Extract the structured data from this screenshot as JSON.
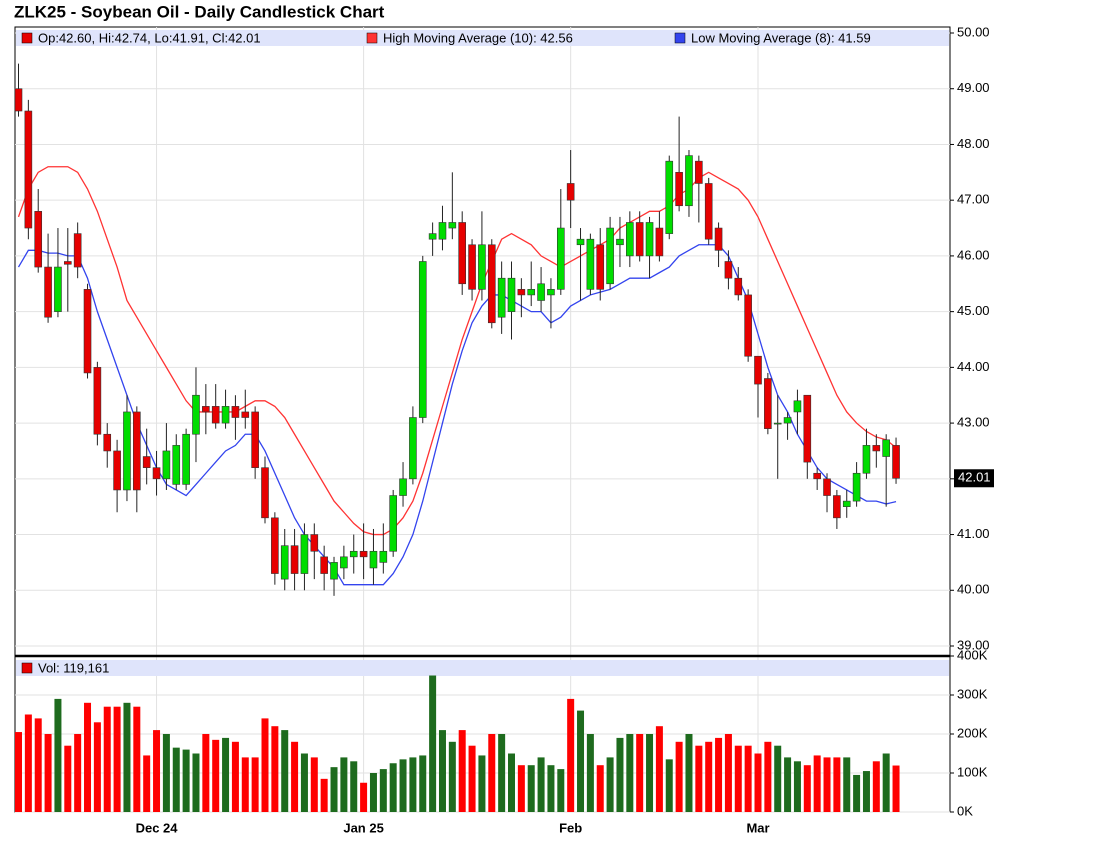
{
  "chart_data": {
    "type": "candlestick",
    "title": "ZLK25 - Soybean Oil - Daily Candlestick Chart",
    "ohlc_legend": "Op:42.60, Hi:42.74, Lo:41.91, Cl:42.01",
    "volume_legend": "Vol: 119,161",
    "categories": [
      null,
      null,
      null,
      null,
      null,
      null,
      null,
      null,
      null,
      null,
      null,
      null,
      null,
      null,
      "Dec 24",
      null,
      null,
      null,
      null,
      null,
      null,
      null,
      null,
      null,
      null,
      null,
      null,
      null,
      null,
      null,
      null,
      null,
      null,
      null,
      null,
      "Jan 25",
      null,
      null,
      null,
      null,
      null,
      null,
      null,
      null,
      null,
      null,
      null,
      null,
      null,
      null,
      null,
      null,
      null,
      null,
      null,
      null,
      "Feb",
      null,
      null,
      null,
      null,
      null,
      null,
      null,
      null,
      null,
      null,
      null,
      null,
      null,
      null,
      null,
      null,
      null,
      null,
      "Mar",
      null,
      null,
      null,
      null,
      null,
      null,
      null,
      null,
      null,
      null,
      null,
      null,
      null,
      null
    ],
    "open": [
      49.0,
      48.6,
      46.8,
      45.8,
      45.0,
      45.9,
      46.4,
      45.4,
      44.0,
      42.8,
      42.5,
      41.8,
      43.2,
      42.4,
      42.2,
      42.0,
      41.9,
      41.9,
      42.8,
      43.3,
      43.3,
      43.0,
      43.3,
      43.2,
      43.2,
      42.2,
      41.3,
      40.2,
      40.8,
      40.3,
      41.0,
      40.6,
      40.2,
      40.4,
      40.6,
      40.7,
      40.4,
      40.5,
      40.7,
      41.7,
      42.0,
      43.1,
      46.3,
      46.3,
      46.5,
      46.6,
      46.2,
      45.4,
      46.2,
      44.9,
      45.0,
      45.4,
      45.3,
      45.2,
      45.3,
      45.4,
      47.3,
      46.2,
      45.4,
      46.2,
      45.5,
      46.2,
      46.0,
      46.6,
      46.0,
      46.5,
      46.4,
      47.5,
      46.9,
      47.7,
      47.3,
      46.5,
      45.9,
      45.6,
      45.3,
      44.2,
      43.8,
      43.0,
      43.0,
      43.2,
      43.5,
      42.1,
      42.0,
      41.7,
      41.5,
      41.6,
      42.1,
      42.6,
      42.4,
      42.6
    ],
    "high": [
      49.45,
      48.8,
      47.2,
      46.4,
      46.5,
      46.5,
      46.6,
      45.5,
      44.1,
      43.0,
      42.7,
      43.5,
      43.3,
      42.9,
      42.5,
      43.0,
      42.8,
      42.9,
      44.0,
      43.7,
      43.7,
      43.6,
      43.5,
      43.6,
      43.3,
      42.4,
      41.4,
      41.1,
      41.1,
      41.2,
      41.2,
      40.8,
      40.6,
      40.8,
      41.0,
      41.2,
      41.1,
      41.2,
      41.8,
      42.3,
      43.3,
      46.0,
      46.6,
      46.9,
      47.5,
      46.8,
      46.3,
      46.8,
      46.3,
      45.9,
      45.9,
      45.6,
      45.9,
      45.8,
      45.6,
      47.2,
      47.9,
      46.5,
      46.4,
      46.5,
      46.7,
      46.7,
      46.8,
      46.8,
      46.7,
      46.8,
      47.8,
      48.5,
      47.9,
      47.8,
      47.4,
      46.6,
      46.1,
      45.8,
      45.4,
      44.2,
      43.9,
      43.5,
      43.2,
      43.6,
      43.5,
      42.2,
      42.1,
      41.8,
      41.8,
      42.3,
      42.9,
      42.8,
      42.8,
      42.74
    ],
    "low": [
      48.5,
      46.3,
      45.7,
      44.8,
      44.9,
      45.0,
      45.6,
      43.8,
      42.6,
      42.2,
      41.4,
      41.6,
      41.4,
      41.9,
      41.7,
      41.8,
      41.8,
      41.8,
      42.3,
      42.8,
      42.9,
      42.9,
      42.7,
      42.9,
      42.0,
      41.2,
      40.1,
      40.0,
      40.0,
      40.0,
      40.2,
      40.0,
      39.9,
      40.2,
      40.3,
      40.2,
      40.1,
      40.3,
      40.6,
      41.5,
      41.9,
      43.0,
      46.0,
      46.1,
      46.3,
      45.3,
      45.2,
      45.2,
      44.7,
      44.6,
      44.5,
      44.9,
      45.1,
      45.0,
      44.7,
      45.3,
      46.5,
      45.2,
      45.3,
      45.2,
      45.4,
      45.8,
      45.8,
      45.9,
      45.6,
      45.9,
      46.3,
      46.8,
      46.7,
      46.6,
      46.2,
      45.8,
      45.4,
      45.2,
      44.1,
      43.1,
      42.8,
      42.0,
      42.7,
      42.8,
      42.0,
      41.8,
      41.4,
      41.1,
      41.3,
      41.5,
      42.0,
      42.2,
      41.5,
      41.91
    ],
    "close": [
      48.6,
      46.5,
      45.8,
      44.9,
      45.8,
      45.85,
      45.8,
      43.9,
      42.8,
      42.5,
      41.8,
      43.2,
      41.8,
      42.2,
      42.0,
      42.5,
      42.6,
      42.8,
      43.5,
      43.2,
      43.0,
      43.3,
      43.1,
      43.1,
      42.2,
      41.3,
      40.3,
      40.8,
      40.3,
      41.0,
      40.7,
      40.3,
      40.5,
      40.6,
      40.7,
      40.6,
      40.7,
      40.7,
      41.7,
      42.0,
      43.1,
      45.9,
      46.4,
      46.6,
      46.6,
      45.5,
      45.4,
      46.2,
      44.8,
      45.6,
      45.6,
      45.3,
      45.4,
      45.5,
      45.4,
      46.5,
      47.0,
      46.3,
      46.3,
      45.4,
      46.5,
      46.3,
      46.6,
      46.0,
      46.6,
      46.0,
      47.7,
      46.9,
      47.8,
      47.3,
      46.3,
      46.1,
      45.6,
      45.3,
      44.2,
      43.7,
      42.9,
      43.0,
      43.1,
      43.4,
      42.3,
      42.0,
      41.7,
      41.3,
      41.6,
      42.1,
      42.6,
      42.5,
      42.7,
      42.01
    ],
    "volume": [
      205000,
      250000,
      240000,
      200000,
      290000,
      170000,
      200000,
      280000,
      230000,
      270000,
      270000,
      280000,
      270000,
      145000,
      210000,
      200000,
      165000,
      160000,
      150000,
      200000,
      185000,
      190000,
      180000,
      140000,
      140000,
      240000,
      220000,
      210000,
      180000,
      150000,
      140000,
      85000,
      115000,
      140000,
      130000,
      75000,
      100000,
      110000,
      125000,
      135000,
      140000,
      145000,
      350000,
      210000,
      180000,
      210000,
      170000,
      145000,
      200000,
      200000,
      150000,
      120000,
      120000,
      140000,
      120000,
      110000,
      290000,
      260000,
      200000,
      120000,
      140000,
      190000,
      200000,
      200000,
      200000,
      220000,
      135000,
      180000,
      200000,
      170000,
      180000,
      190000,
      200000,
      170000,
      170000,
      150000,
      180000,
      170000,
      140000,
      130000,
      120000,
      145000,
      140000,
      140000,
      140000,
      95000,
      105000,
      130000,
      150000,
      119161
    ],
    "series": [
      {
        "name": "High Moving Average (10): 42.56",
        "color": "#ff3333",
        "values": [
          46.7,
          47.2,
          47.5,
          47.6,
          47.6,
          47.6,
          47.5,
          47.2,
          46.8,
          46.3,
          45.8,
          45.2,
          44.9,
          44.6,
          44.3,
          44.0,
          43.7,
          43.4,
          43.2,
          43.2,
          43.2,
          43.2,
          43.2,
          43.3,
          43.4,
          43.4,
          43.3,
          43.1,
          42.8,
          42.5,
          42.2,
          41.9,
          41.6,
          41.4,
          41.2,
          41.05,
          41.0,
          41.0,
          41.1,
          41.3,
          41.6,
          42.1,
          42.7,
          43.3,
          43.9,
          44.5,
          45.0,
          45.5,
          45.9,
          46.3,
          46.4,
          46.3,
          46.2,
          46.0,
          45.9,
          45.8,
          45.9,
          46.0,
          46.1,
          46.2,
          46.3,
          46.5,
          46.6,
          46.7,
          46.8,
          46.8,
          46.9,
          47.1,
          47.2,
          47.4,
          47.5,
          47.4,
          47.3,
          47.2,
          47.0,
          46.7,
          46.3,
          45.9,
          45.5,
          45.1,
          44.7,
          44.3,
          43.9,
          43.5,
          43.2,
          43.0,
          42.85,
          42.75,
          42.7,
          42.56
        ]
      },
      {
        "name": "Low Moving Average (8): 41.59",
        "color": "#3344ee",
        "values": [
          45.8,
          46.1,
          46.1,
          46.05,
          46.05,
          46.0,
          46.0,
          45.6,
          45.0,
          44.5,
          44.0,
          43.5,
          43.0,
          42.6,
          42.2,
          41.9,
          41.8,
          41.7,
          41.9,
          42.1,
          42.3,
          42.5,
          42.6,
          42.8,
          42.8,
          42.5,
          42.1,
          41.7,
          41.3,
          41.0,
          40.8,
          40.6,
          40.4,
          40.1,
          40.1,
          40.1,
          40.1,
          40.1,
          40.3,
          40.6,
          41.0,
          41.6,
          42.3,
          43.0,
          43.7,
          44.3,
          44.8,
          45.1,
          45.3,
          45.3,
          45.2,
          45.1,
          45.0,
          45.0,
          44.8,
          44.9,
          45.1,
          45.2,
          45.3,
          45.35,
          45.4,
          45.5,
          45.6,
          45.6,
          45.6,
          45.7,
          45.8,
          46.0,
          46.1,
          46.2,
          46.2,
          46.2,
          46.0,
          45.6,
          45.2,
          44.6,
          44.0,
          43.5,
          43.2,
          42.8,
          42.5,
          42.2,
          42.0,
          41.9,
          41.8,
          41.7,
          41.6,
          41.6,
          41.55,
          41.59
        ]
      }
    ],
    "up_color": "#00dd00",
    "down_color": "#e60000",
    "volume_up_color": "#1e6b1e",
    "volume_down_color": "#ff0000",
    "ylim": [
      39,
      50
    ],
    "yticks": [
      {
        "value": 39,
        "label": "39.00"
      },
      {
        "value": 40,
        "label": "40.00"
      },
      {
        "value": 41,
        "label": "41.00"
      },
      {
        "value": 42,
        "label": "42.00"
      },
      {
        "value": 43,
        "label": "43.00"
      },
      {
        "value": 44,
        "label": "44.00"
      },
      {
        "value": 45,
        "label": "45.00"
      },
      {
        "value": 46,
        "label": "46.00"
      },
      {
        "value": 47,
        "label": "47.00"
      },
      {
        "value": 48,
        "label": "48.00"
      },
      {
        "value": 49,
        "label": "49.00"
      },
      {
        "value": 50,
        "label": "50.00"
      }
    ],
    "y2lim": [
      0,
      400000
    ],
    "y2ticks": [
      {
        "value": 0,
        "label": "0K"
      },
      {
        "value": 100000,
        "label": "100K"
      },
      {
        "value": 200000,
        "label": "200K"
      },
      {
        "value": 300000,
        "label": "300K"
      },
      {
        "value": 400000,
        "label": "400K"
      }
    ],
    "last_price": {
      "value": 42.01,
      "label": "42.01"
    },
    "grid": true
  }
}
